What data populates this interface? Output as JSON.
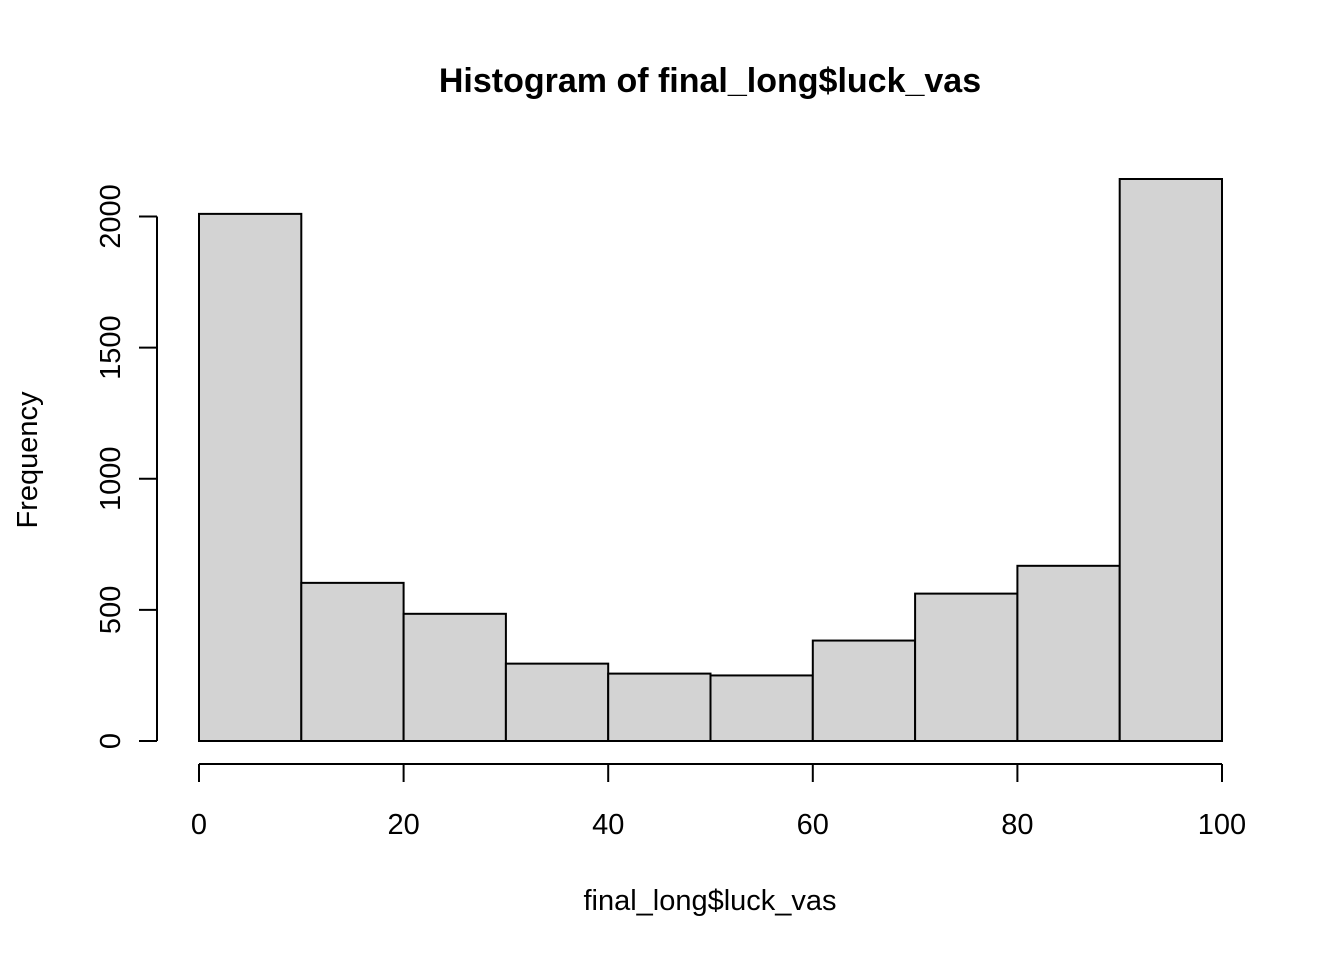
{
  "chart_data": {
    "type": "bar",
    "title": "Histogram of final_long$luck_vas",
    "xlabel": "final_long$luck_vas",
    "ylabel": "Frequency",
    "bins": [
      {
        "start": 0,
        "end": 10,
        "count": 2010
      },
      {
        "start": 10,
        "end": 20,
        "count": 603
      },
      {
        "start": 20,
        "end": 30,
        "count": 485
      },
      {
        "start": 30,
        "end": 40,
        "count": 295
      },
      {
        "start": 40,
        "end": 50,
        "count": 257
      },
      {
        "start": 50,
        "end": 60,
        "count": 250
      },
      {
        "start": 60,
        "end": 70,
        "count": 383
      },
      {
        "start": 70,
        "end": 80,
        "count": 562
      },
      {
        "start": 80,
        "end": 90,
        "count": 668
      },
      {
        "start": 90,
        "end": 100,
        "count": 2143
      }
    ],
    "xlim": [
      0,
      100
    ],
    "ylim": [
      0,
      2143
    ],
    "x_ticks": [
      0,
      20,
      40,
      60,
      80,
      100
    ],
    "y_ticks": [
      0,
      500,
      1000,
      1500,
      2000
    ],
    "x_tick_labels": [
      "0",
      "20",
      "40",
      "60",
      "80",
      "100"
    ],
    "y_tick_labels": [
      "0",
      "500",
      "1000",
      "1500",
      "2000"
    ],
    "grid": false,
    "legend": "none",
    "colors": {
      "bar_fill": "#d3d3d3",
      "bar_stroke": "#000000",
      "background": "#ffffff"
    }
  }
}
